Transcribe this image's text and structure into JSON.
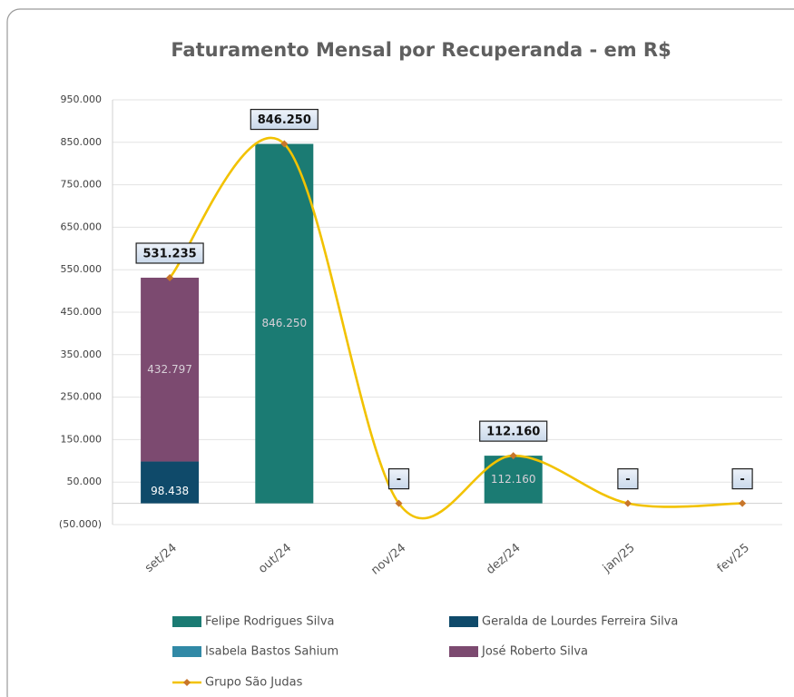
{
  "chart_data": {
    "type": "bar",
    "title": "Faturamento Mensal por Recuperanda - em R$",
    "categories": [
      "set/24",
      "out/24",
      "nov/24",
      "dez/24",
      "jan/25",
      "fev/25"
    ],
    "series": [
      {
        "name": "Felipe Rodrigues Silva",
        "color": "#1b7b73",
        "values": [
          null,
          846250,
          null,
          112160,
          null,
          null
        ],
        "value_labels": [
          null,
          "846.250",
          null,
          "112.160",
          null,
          null
        ]
      },
      {
        "name": "Geralda de Lourdes Ferreira Silva",
        "color": "#0f4a6a",
        "values": [
          98438,
          null,
          null,
          null,
          null,
          null
        ],
        "value_labels": [
          "98.438",
          null,
          null,
          null,
          null,
          null
        ]
      },
      {
        "name": "Isabela Bastos Sahium",
        "color": "#3189a6",
        "values": [
          null,
          null,
          null,
          null,
          null,
          null
        ]
      },
      {
        "name": "José Roberto Silva",
        "color": "#7c4a70",
        "values": [
          432797,
          null,
          null,
          null,
          null,
          null
        ],
        "value_labels": [
          "432.797",
          null,
          null,
          null,
          null,
          null
        ]
      },
      {
        "name": "Grupo São Judas",
        "type": "line",
        "color": "#f2c200",
        "marker_color": "#c8762a",
        "values": [
          531235,
          846250,
          0,
          112160,
          0,
          0
        ],
        "value_labels": [
          "531.235",
          "846.250",
          "-",
          "112.160",
          "-",
          "-"
        ]
      }
    ],
    "ylim": [
      -50000,
      950000
    ],
    "yticks": [
      {
        "value": -50000,
        "label": "(50.000)"
      },
      {
        "value": 50000,
        "label": "50.000"
      },
      {
        "value": 150000,
        "label": "150.000"
      },
      {
        "value": 250000,
        "label": "250.000"
      },
      {
        "value": 350000,
        "label": "350.000"
      },
      {
        "value": 450000,
        "label": "450.000"
      },
      {
        "value": 550000,
        "label": "550.000"
      },
      {
        "value": 650000,
        "label": "650.000"
      },
      {
        "value": 750000,
        "label": "750.000"
      },
      {
        "value": 850000,
        "label": "850.000"
      },
      {
        "value": 950000,
        "label": "950.000"
      }
    ],
    "grid": true,
    "legend": "bottom"
  }
}
